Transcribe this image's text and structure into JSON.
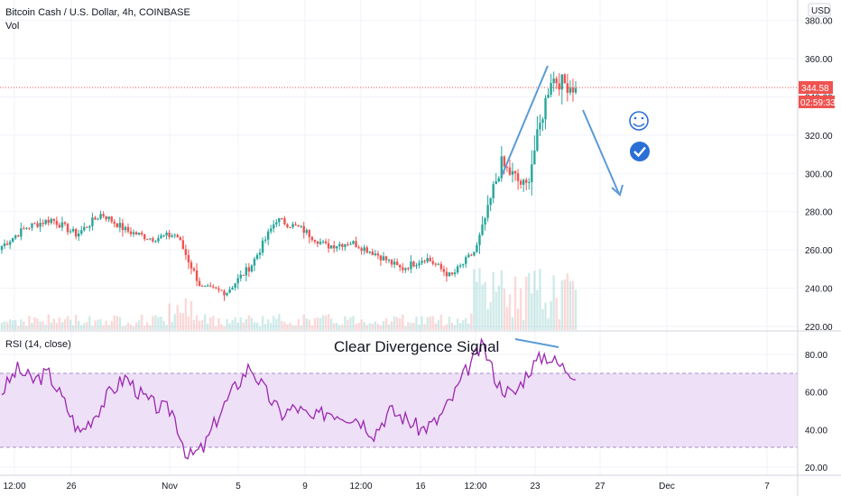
{
  "header": {
    "symbol_title": "Bitcoin Cash / U.S. Dollar, 4h, COINBASE",
    "volume_label": "Vol",
    "currency_button": "USD"
  },
  "price_axis": {
    "ticks": [
      "380.00",
      "360.00",
      "340.00",
      "320.00",
      "300.00",
      "280.00",
      "260.00",
      "240.00",
      "220.00"
    ],
    "last_price": "344.58",
    "countdown": "02:59:33"
  },
  "rsi_panel": {
    "label": "RSI (14, close)",
    "ticks": [
      "80.00",
      "60.00",
      "40.00",
      "20.00"
    ]
  },
  "time_axis": {
    "ticks": [
      "12:00",
      "26",
      "Nov",
      "5",
      "9",
      "12:00",
      "16",
      "12:00",
      "23",
      "27",
      "Dec",
      "7"
    ]
  },
  "annotation": {
    "text": "Clear Divergence Signal"
  },
  "colors": {
    "up": "#26a69a",
    "down": "#ef5350",
    "rsi_line": "#9c27b0",
    "rsi_band": "#ede0f7",
    "drawing": "#5b9bd5",
    "last_price_badge": "#ef5350"
  },
  "icons": [
    "smiley-icon",
    "checkmark-circle-icon"
  ],
  "chart_data": [
    {
      "type": "candlestick",
      "title": "Bitcoin Cash / U.S. Dollar, 4h, COINBASE",
      "ylim": [
        215,
        385
      ],
      "last_price": 344.58,
      "close_path": [
        {
          "t": "Oct 21 12:00",
          "close": 262
        },
        {
          "t": "Oct 23",
          "close": 272
        },
        {
          "t": "Oct 24",
          "close": 276
        },
        {
          "t": "Oct 26",
          "close": 268
        },
        {
          "t": "Oct 28",
          "close": 279
        },
        {
          "t": "Oct 30",
          "close": 270
        },
        {
          "t": "Nov 1",
          "close": 266
        },
        {
          "t": "Nov 2",
          "close": 268
        },
        {
          "t": "Nov 3",
          "close": 240
        },
        {
          "t": "Nov 4",
          "close": 238
        },
        {
          "t": "Nov 6",
          "close": 252
        },
        {
          "t": "Nov 8",
          "close": 276
        },
        {
          "t": "Nov 9",
          "close": 271
        },
        {
          "t": "Nov 11",
          "close": 262
        },
        {
          "t": "Nov 13",
          "close": 264
        },
        {
          "t": "Nov 15",
          "close": 258
        },
        {
          "t": "Nov 16",
          "close": 250
        },
        {
          "t": "Nov 18",
          "close": 256
        },
        {
          "t": "Nov 19",
          "close": 246
        },
        {
          "t": "Nov 21",
          "close": 260
        },
        {
          "t": "Nov 22",
          "close": 305
        },
        {
          "t": "Nov 23",
          "close": 292
        },
        {
          "t": "Nov 24",
          "close": 350
        },
        {
          "t": "Nov 25",
          "close": 344.58
        }
      ]
    },
    {
      "type": "line",
      "title": "RSI (14, close)",
      "ylim": [
        15,
        90
      ],
      "bands": [
        30,
        70
      ],
      "series": [
        {
          "name": "RSI (14, close)",
          "values": [
            60,
            72,
            66,
            70,
            55,
            38,
            48,
            60,
            68,
            58,
            52,
            50,
            25,
            30,
            48,
            62,
            74,
            60,
            48,
            52,
            45,
            50,
            48,
            46,
            38,
            50,
            46,
            40,
            44,
            56,
            72,
            85,
            64,
            58,
            72,
            80,
            74,
            70
          ]
        }
      ]
    }
  ]
}
